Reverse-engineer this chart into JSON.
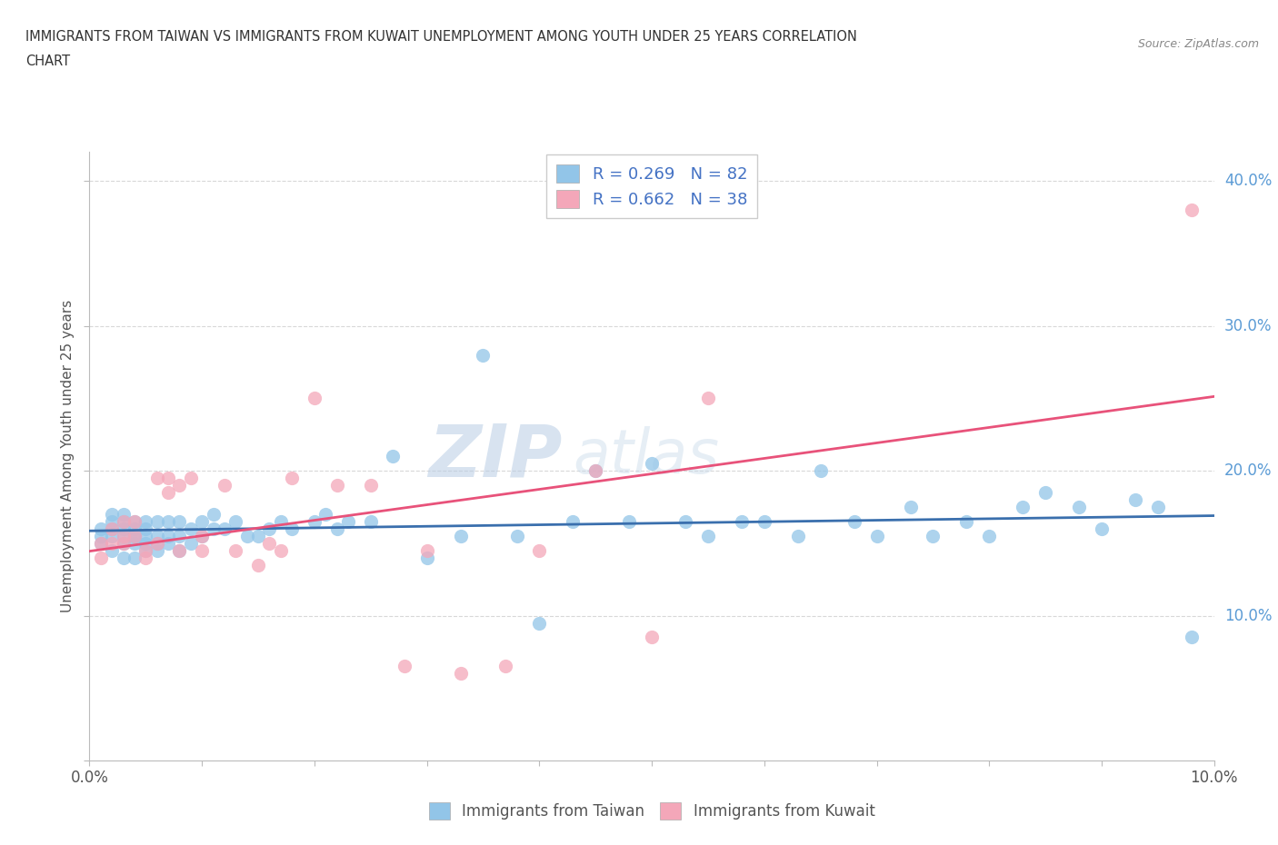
{
  "title_line1": "IMMIGRANTS FROM TAIWAN VS IMMIGRANTS FROM KUWAIT UNEMPLOYMENT AMONG YOUTH UNDER 25 YEARS CORRELATION",
  "title_line2": "CHART",
  "source_text": "Source: ZipAtlas.com",
  "ylabel": "Unemployment Among Youth under 25 years",
  "x_min": 0.0,
  "x_max": 0.1,
  "y_min": 0.0,
  "y_max": 0.42,
  "x_ticks": [
    0.0,
    0.01,
    0.02,
    0.03,
    0.04,
    0.05,
    0.06,
    0.07,
    0.08,
    0.09,
    0.1
  ],
  "x_tick_labels": [
    "0.0%",
    "",
    "",
    "",
    "",
    "",
    "",
    "",
    "",
    "",
    "10.0%"
  ],
  "y_ticks": [
    0.0,
    0.1,
    0.2,
    0.3,
    0.4
  ],
  "y_tick_labels": [
    "",
    "10.0%",
    "20.0%",
    "30.0%",
    "40.0%"
  ],
  "taiwan_color": "#92c5e8",
  "kuwait_color": "#f4a7b9",
  "taiwan_line_color": "#3a6fad",
  "kuwait_line_color": "#e8527a",
  "watermark_zip": "ZIP",
  "watermark_atlas": "atlas",
  "watermark_color_zip": "#c8d8ee",
  "watermark_color_atlas": "#c8d8ee",
  "background_color": "#ffffff",
  "grid_color": "#d8d8d8",
  "taiwan_scatter_x": [
    0.001,
    0.001,
    0.001,
    0.002,
    0.002,
    0.002,
    0.002,
    0.002,
    0.003,
    0.003,
    0.003,
    0.003,
    0.003,
    0.003,
    0.004,
    0.004,
    0.004,
    0.004,
    0.004,
    0.004,
    0.005,
    0.005,
    0.005,
    0.005,
    0.005,
    0.006,
    0.006,
    0.006,
    0.006,
    0.007,
    0.007,
    0.007,
    0.008,
    0.008,
    0.008,
    0.009,
    0.009,
    0.01,
    0.01,
    0.011,
    0.011,
    0.012,
    0.013,
    0.014,
    0.015,
    0.016,
    0.017,
    0.018,
    0.02,
    0.021,
    0.022,
    0.023,
    0.025,
    0.027,
    0.03,
    0.033,
    0.035,
    0.038,
    0.04,
    0.043,
    0.045,
    0.048,
    0.05,
    0.053,
    0.055,
    0.058,
    0.06,
    0.063,
    0.065,
    0.068,
    0.07,
    0.073,
    0.075,
    0.078,
    0.08,
    0.083,
    0.085,
    0.088,
    0.09,
    0.093,
    0.095,
    0.098
  ],
  "taiwan_scatter_y": [
    0.15,
    0.155,
    0.16,
    0.145,
    0.155,
    0.16,
    0.165,
    0.17,
    0.14,
    0.15,
    0.155,
    0.16,
    0.165,
    0.17,
    0.14,
    0.15,
    0.155,
    0.16,
    0.165,
    0.155,
    0.145,
    0.15,
    0.155,
    0.16,
    0.165,
    0.145,
    0.15,
    0.155,
    0.165,
    0.15,
    0.155,
    0.165,
    0.145,
    0.155,
    0.165,
    0.15,
    0.16,
    0.155,
    0.165,
    0.16,
    0.17,
    0.16,
    0.165,
    0.155,
    0.155,
    0.16,
    0.165,
    0.16,
    0.165,
    0.17,
    0.16,
    0.165,
    0.165,
    0.21,
    0.14,
    0.155,
    0.28,
    0.155,
    0.095,
    0.165,
    0.2,
    0.165,
    0.205,
    0.165,
    0.155,
    0.165,
    0.165,
    0.155,
    0.2,
    0.165,
    0.155,
    0.175,
    0.155,
    0.165,
    0.155,
    0.175,
    0.185,
    0.175,
    0.16,
    0.18,
    0.175,
    0.085
  ],
  "kuwait_scatter_x": [
    0.001,
    0.001,
    0.002,
    0.002,
    0.003,
    0.003,
    0.003,
    0.004,
    0.004,
    0.005,
    0.005,
    0.006,
    0.006,
    0.007,
    0.007,
    0.008,
    0.008,
    0.009,
    0.01,
    0.01,
    0.012,
    0.013,
    0.015,
    0.016,
    0.017,
    0.018,
    0.02,
    0.022,
    0.025,
    0.028,
    0.03,
    0.033,
    0.037,
    0.04,
    0.045,
    0.05,
    0.055,
    0.098
  ],
  "kuwait_scatter_y": [
    0.14,
    0.15,
    0.15,
    0.16,
    0.15,
    0.155,
    0.165,
    0.155,
    0.165,
    0.14,
    0.145,
    0.15,
    0.195,
    0.185,
    0.195,
    0.145,
    0.19,
    0.195,
    0.145,
    0.155,
    0.19,
    0.145,
    0.135,
    0.15,
    0.145,
    0.195,
    0.25,
    0.19,
    0.19,
    0.065,
    0.145,
    0.06,
    0.065,
    0.145,
    0.2,
    0.085,
    0.25,
    0.38
  ],
  "legend_taiwan_label": "R = 0.269   N = 82",
  "legend_kuwait_label": "R = 0.662   N = 38",
  "bottom_legend_taiwan": "Immigrants from Taiwan",
  "bottom_legend_kuwait": "Immigrants from Kuwait"
}
